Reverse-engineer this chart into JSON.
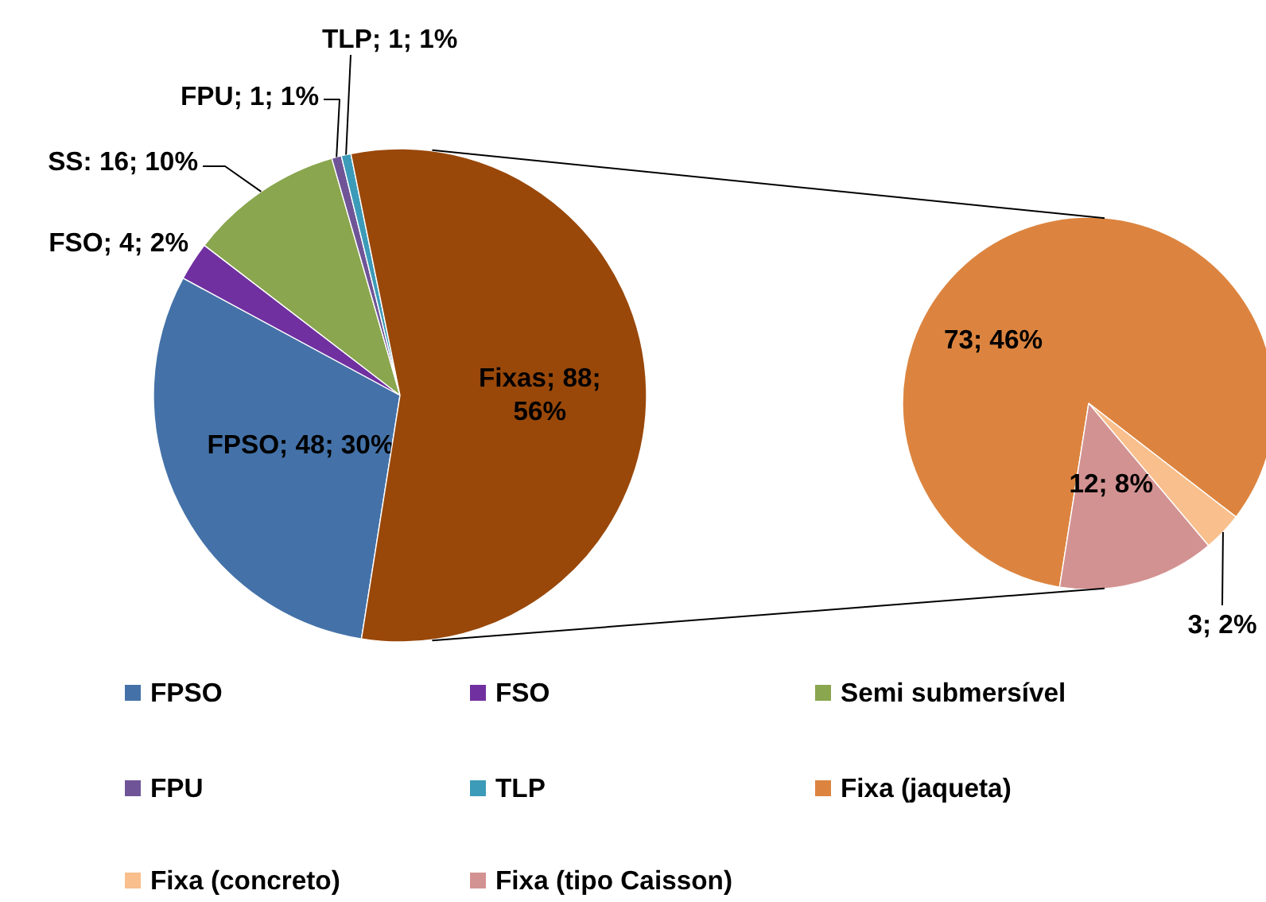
{
  "chart_data": [
    {
      "type": "pie",
      "categories": [
        "FPSO",
        "FSO",
        "Semi submersível",
        "FPU",
        "TLP",
        null
      ],
      "values": [
        48,
        4,
        16,
        1,
        1,
        88
      ],
      "colors": [
        "#4472a8",
        "#7030a0",
        "#8aa64e",
        "#6f5597",
        "#3c9bb8",
        "#99480a"
      ],
      "value_labels": [
        "FPSO; 48; 30%",
        "FSO; 4; 2%",
        "SS: 16; 10%",
        "FPU; 1; 1%",
        "TLP; 1; 1%",
        "Fixas; 88; 56%"
      ],
      "legend": "bottom"
    },
    {
      "type": "pie",
      "categories": [
        "Fixa (jaqueta)",
        "Fixa (concreto)",
        "Fixa (tipo Caisson)"
      ],
      "values": [
        73,
        3,
        12
      ],
      "colors": [
        "#dc843f",
        "#f9bf8c",
        "#d39292"
      ],
      "value_labels": [
        "73; 46%",
        "3; 2%",
        "12; 8%"
      ],
      "legend": "bottom"
    }
  ]
}
